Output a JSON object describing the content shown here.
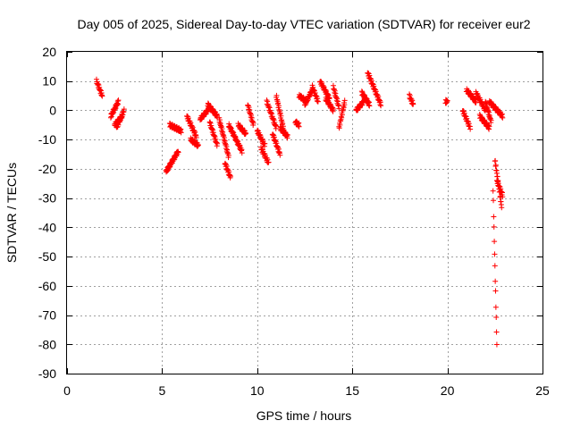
{
  "chart_data": {
    "type": "scatter",
    "title": "Day 005 of 2025, Sidereal Day-to-day VTEC variation (SDTVAR) for receiver eur2",
    "xlabel": "GPS time / hours",
    "ylabel": "SDTVAR / TECUs",
    "xlim": [
      0,
      25
    ],
    "ylim": [
      -90,
      20
    ],
    "xticks": [
      0,
      5,
      10,
      15,
      20,
      25
    ],
    "yticks": [
      20,
      10,
      0,
      -10,
      -20,
      -30,
      -40,
      -50,
      -60,
      -70,
      -80,
      -90
    ],
    "grid": true,
    "marker": "plus",
    "color": "#ff0000",
    "series": [
      {
        "name": "SDTVAR",
        "segments": [
          {
            "x": [
              1.55,
              1.85
            ],
            "y": [
              10,
              5
            ]
          },
          {
            "x": [
              2.3,
              2.7
            ],
            "y": [
              -2,
              3
            ]
          },
          {
            "x": [
              2.5,
              2.9
            ],
            "y": [
              -5,
              -2
            ]
          },
          {
            "x": [
              2.6,
              3.0
            ],
            "y": [
              -6,
              0
            ]
          },
          {
            "x": [
              5.2,
              5.85
            ],
            "y": [
              -21,
              -14
            ]
          },
          {
            "x": [
              5.4,
              6.0
            ],
            "y": [
              -5,
              -7
            ]
          },
          {
            "x": [
              6.3,
              6.8
            ],
            "y": [
              -2,
              -9
            ]
          },
          {
            "x": [
              6.5,
              6.9
            ],
            "y": [
              -10,
              -12
            ]
          },
          {
            "x": [
              7.0,
              7.4
            ],
            "y": [
              -3,
              0
            ]
          },
          {
            "x": [
              7.4,
              7.9
            ],
            "y": [
              2,
              -2
            ]
          },
          {
            "x": [
              7.5,
              7.9
            ],
            "y": [
              -4,
              -12
            ]
          },
          {
            "x": [
              8.0,
              8.5
            ],
            "y": [
              -3,
              -16
            ]
          },
          {
            "x": [
              8.3,
              8.6
            ],
            "y": [
              -18,
              -23
            ]
          },
          {
            "x": [
              8.5,
              9.2
            ],
            "y": [
              -5,
              -14
            ]
          },
          {
            "x": [
              9.0,
              9.4
            ],
            "y": [
              -5,
              -8
            ]
          },
          {
            "x": [
              9.5,
              9.8
            ],
            "y": [
              2,
              -5
            ]
          },
          {
            "x": [
              10.0,
              10.4
            ],
            "y": [
              -7,
              -12
            ]
          },
          {
            "x": [
              10.2,
              10.6
            ],
            "y": [
              -13,
              -18
            ]
          },
          {
            "x": [
              10.5,
              11.0
            ],
            "y": [
              3,
              -6
            ]
          },
          {
            "x": [
              10.8,
              11.2
            ],
            "y": [
              -8,
              -15
            ]
          },
          {
            "x": [
              11.0,
              11.4
            ],
            "y": [
              5,
              -7
            ]
          },
          {
            "x": [
              11.2,
              11.6
            ],
            "y": [
              -6,
              -9
            ]
          },
          {
            "x": [
              12.0,
              12.2
            ],
            "y": [
              -4,
              -5
            ]
          },
          {
            "x": [
              12.2,
              12.6
            ],
            "y": [
              5,
              3
            ]
          },
          {
            "x": [
              12.5,
              12.9
            ],
            "y": [
              2,
              7
            ]
          },
          {
            "x": [
              12.9,
              13.2
            ],
            "y": [
              8,
              3
            ]
          },
          {
            "x": [
              13.3,
              13.8
            ],
            "y": [
              10,
              4
            ]
          },
          {
            "x": [
              13.6,
              14.0
            ],
            "y": [
              4,
              0
            ]
          },
          {
            "x": [
              14.0,
              14.3
            ],
            "y": [
              8,
              1
            ]
          },
          {
            "x": [
              14.3,
              14.6
            ],
            "y": [
              -6,
              3
            ]
          },
          {
            "x": [
              15.2,
              15.6
            ],
            "y": [
              0,
              3
            ]
          },
          {
            "x": [
              15.5,
              15.9
            ],
            "y": [
              6,
              2
            ]
          },
          {
            "x": [
              15.8,
              16.5
            ],
            "y": [
              13,
              2
            ]
          },
          {
            "x": [
              18.0,
              18.2
            ],
            "y": [
              5,
              2
            ]
          },
          {
            "x": [
              19.9,
              20.0
            ],
            "y": [
              3,
              3
            ]
          },
          {
            "x": [
              20.8,
              21.2
            ],
            "y": [
              0,
              -6
            ]
          },
          {
            "x": [
              21.0,
              21.5
            ],
            "y": [
              7,
              3
            ]
          },
          {
            "x": [
              21.5,
              22.0
            ],
            "y": [
              6,
              0
            ]
          },
          {
            "x": [
              21.7,
              22.2
            ],
            "y": [
              -2,
              -6
            ]
          },
          {
            "x": [
              22.0,
              22.3
            ],
            "y": [
              3,
              -4
            ]
          },
          {
            "x": [
              22.2,
              22.9
            ],
            "y": [
              3,
              -2
            ]
          },
          {
            "x": [
              22.4,
              22.6
            ],
            "y": [
              -27,
              -80
            ]
          },
          {
            "x": [
              22.5,
              22.85
            ],
            "y": [
              -17,
              -33
            ]
          },
          {
            "x": [
              22.6,
              22.9
            ],
            "y": [
              -24,
              -29
            ]
          }
        ]
      }
    ]
  }
}
